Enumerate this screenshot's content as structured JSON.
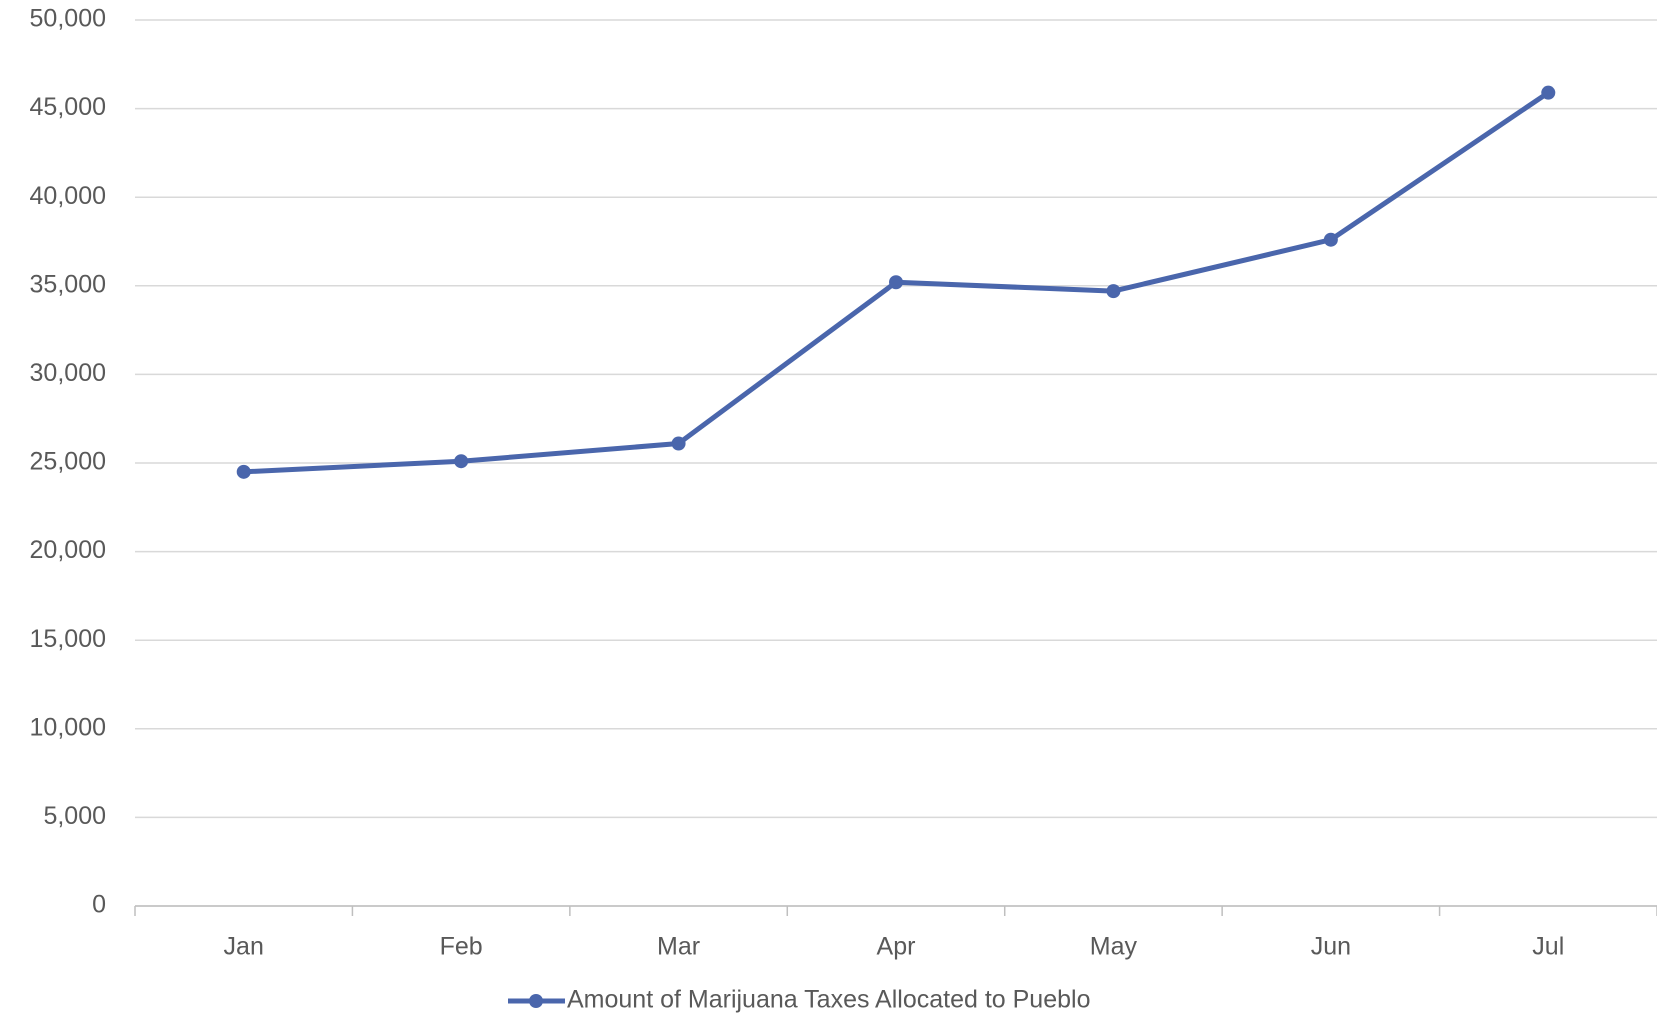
{
  "chart_data": {
    "type": "line",
    "categories": [
      "Jan",
      "Feb",
      "Mar",
      "Apr",
      "May",
      "Jun",
      "Jul"
    ],
    "series": [
      {
        "name": "Amount of Marijuana Taxes Allocated to Pueblo",
        "color": "#4a66ac",
        "values": [
          24500,
          25100,
          26100,
          35200,
          34700,
          37600,
          45900
        ]
      }
    ],
    "ylim": [
      0,
      50000
    ],
    "yticks": [
      0,
      {
        "value": 5000,
        "label": "5,000"
      },
      {
        "value": 10000,
        "label": "10,000"
      },
      {
        "value": 15000,
        "label": "15,000"
      },
      {
        "value": 20000,
        "label": "20,000"
      },
      {
        "value": 25000,
        "label": "25,000"
      },
      {
        "value": 30000,
        "label": "30,000"
      },
      {
        "value": 35000,
        "label": "35,000"
      },
      {
        "value": 40000,
        "label": "40,000"
      },
      {
        "value": 45000,
        "label": "45,000"
      },
      {
        "value": 50000,
        "label": "50,000"
      }
    ],
    "grid": true,
    "legend": "bottom"
  }
}
